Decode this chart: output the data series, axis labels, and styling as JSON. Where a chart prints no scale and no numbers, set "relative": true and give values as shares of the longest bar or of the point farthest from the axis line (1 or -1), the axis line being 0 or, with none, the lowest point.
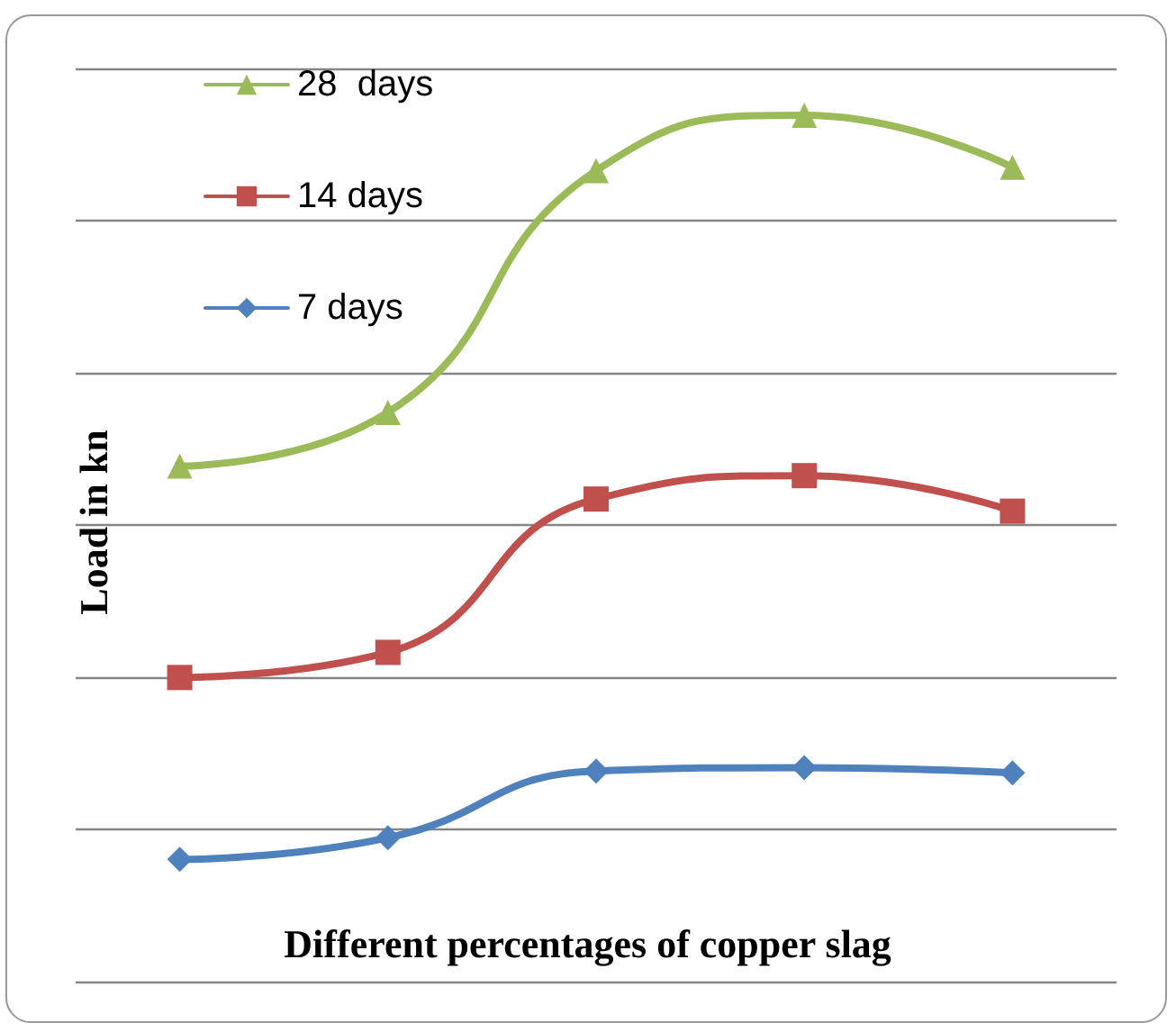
{
  "chart_data": {
    "type": "line",
    "relative": true,
    "xlabel": "Different percentages of copper slag",
    "ylabel": "Load in kn",
    "categories": [
      null,
      null,
      null,
      null,
      null
    ],
    "grid": "y",
    "legend": "top left",
    "line_style": "solid",
    "series": [
      {
        "name": "28  days",
        "color": "#9bbb59",
        "marker": "triangle",
        "values": [
          0.595,
          0.657,
          0.936,
          1,
          0.94
        ]
      },
      {
        "name": "14 days",
        "color": "#c0504d",
        "marker": "square",
        "values": [
          0.351,
          0.38,
          0.557,
          0.584,
          0.543
        ]
      },
      {
        "name": "7 days",
        "color": "#4f81bd",
        "marker": "diamond",
        "values": [
          0.141,
          0.166,
          0.243,
          0.247,
          0.241
        ]
      }
    ]
  }
}
